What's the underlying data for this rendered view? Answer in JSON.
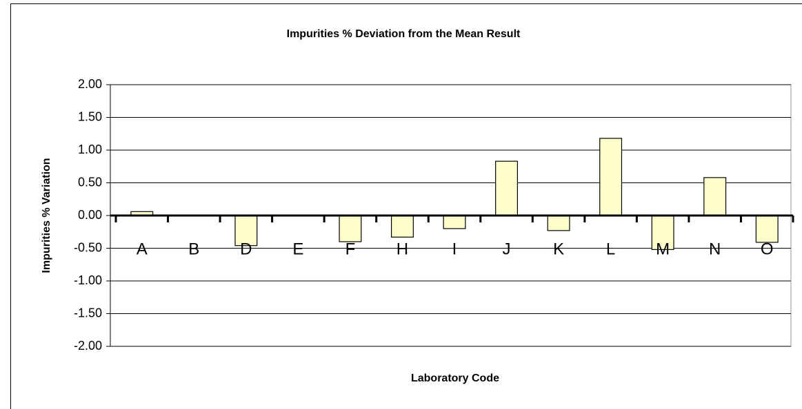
{
  "chart_data": {
    "type": "bar",
    "title": "Impurities % Deviation from the Mean Result",
    "x_label": "Laboratory Code",
    "y_label": "Impurities % Variation",
    "categories": [
      "A",
      "B",
      "D",
      "E",
      "F",
      "H",
      "I",
      "J",
      "K",
      "L",
      "M",
      "N",
      "O"
    ],
    "values": [
      0.06,
      null,
      -0.46,
      null,
      -0.4,
      -0.33,
      -0.2,
      0.83,
      -0.23,
      1.18,
      -0.52,
      0.58,
      -0.41
    ],
    "color": "#ffffcc",
    "ylim": [
      -2,
      2
    ],
    "yticks": [
      {
        "value": -2,
        "label": "-2.00"
      },
      {
        "value": -1.5,
        "label": "-1.50"
      },
      {
        "value": -1,
        "label": "-1.00"
      },
      {
        "value": -0.5,
        "label": "-0.50"
      },
      {
        "value": 0,
        "label": "0.00"
      },
      {
        "value": 0.5,
        "label": "0.50"
      },
      {
        "value": 1,
        "label": "1.00"
      },
      {
        "value": 1.5,
        "label": "1.50"
      },
      {
        "value": 2,
        "label": "2.00"
      }
    ],
    "grid": true
  }
}
